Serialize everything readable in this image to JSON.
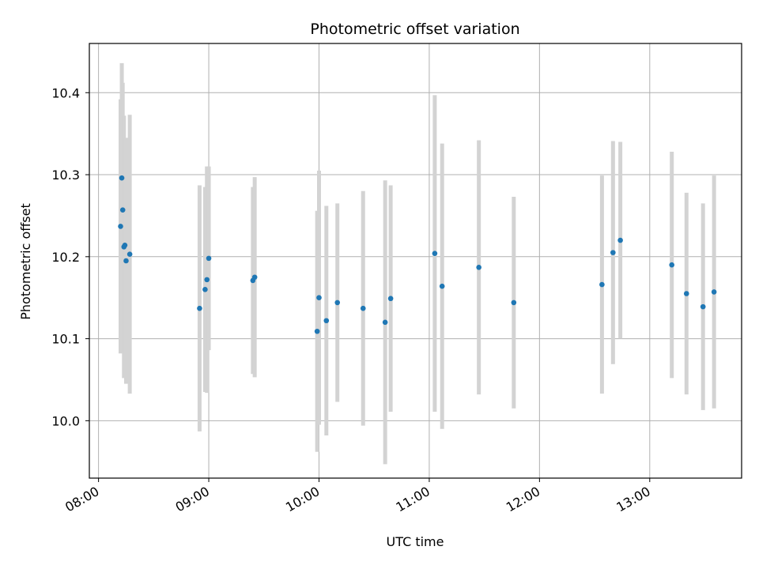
{
  "chart_data": {
    "type": "scatter",
    "title": "Photometric offset variation",
    "xlabel": "UTC time",
    "ylabel": "Photometric offset",
    "x_axis_type": "time",
    "xlim": [
      "07:55",
      "13:50"
    ],
    "ylim": [
      9.93,
      10.46
    ],
    "x_ticks": [
      "08:00",
      "09:00",
      "10:00",
      "11:00",
      "12:00",
      "13:00"
    ],
    "y_ticks": [
      10.0,
      10.1,
      10.2,
      10.3,
      10.4
    ],
    "y_tick_labels": [
      "10.0",
      "10.1",
      "10.2",
      "10.3",
      "10.4"
    ],
    "grid": true,
    "marker_color": "#1f77b4",
    "errorbar_color": "#d3d3d3",
    "points": [
      {
        "time": "08:12",
        "y": 10.237,
        "err": 0.155
      },
      {
        "time": "08:12:40",
        "y": 10.296,
        "err": 0.14
      },
      {
        "time": "08:13:10",
        "y": 10.257,
        "err": 0.155
      },
      {
        "time": "08:13:50",
        "y": 10.212,
        "err": 0.16
      },
      {
        "time": "08:14:20",
        "y": 10.214,
        "err": 0.13
      },
      {
        "time": "08:15",
        "y": 10.195,
        "err": 0.15
      },
      {
        "time": "08:17",
        "y": 10.203,
        "err": 0.17
      },
      {
        "time": "08:55",
        "y": 10.137,
        "err": 0.15
      },
      {
        "time": "08:58",
        "y": 10.16,
        "err": 0.125
      },
      {
        "time": "08:59",
        "y": 10.172,
        "err": 0.138
      },
      {
        "time": "09:00",
        "y": 10.198,
        "err": 0.112
      },
      {
        "time": "09:24",
        "y": 10.171,
        "err": 0.114
      },
      {
        "time": "09:25",
        "y": 10.175,
        "err": 0.122
      },
      {
        "time": "09:59",
        "y": 10.109,
        "err": 0.147
      },
      {
        "time": "10:00",
        "y": 10.15,
        "err": 0.155
      },
      {
        "time": "10:04",
        "y": 10.122,
        "err": 0.14
      },
      {
        "time": "10:10",
        "y": 10.144,
        "err": 0.121
      },
      {
        "time": "10:24",
        "y": 10.137,
        "err": 0.143
      },
      {
        "time": "10:36",
        "y": 10.12,
        "err": 0.173
      },
      {
        "time": "10:39",
        "y": 10.149,
        "err": 0.138
      },
      {
        "time": "11:03",
        "y": 10.204,
        "err": 0.193
      },
      {
        "time": "11:07",
        "y": 10.164,
        "err": 0.174
      },
      {
        "time": "11:27",
        "y": 10.187,
        "err": 0.155
      },
      {
        "time": "11:46",
        "y": 10.144,
        "err": 0.129
      },
      {
        "time": "12:34",
        "y": 10.166,
        "err": 0.133
      },
      {
        "time": "12:40",
        "y": 10.205,
        "err": 0.136
      },
      {
        "time": "12:44",
        "y": 10.22,
        "err": 0.12
      },
      {
        "time": "13:12",
        "y": 10.19,
        "err": 0.138
      },
      {
        "time": "13:20",
        "y": 10.155,
        "err": 0.123
      },
      {
        "time": "13:29",
        "y": 10.139,
        "err": 0.126
      },
      {
        "time": "13:35",
        "y": 10.157,
        "err": 0.142
      }
    ]
  }
}
